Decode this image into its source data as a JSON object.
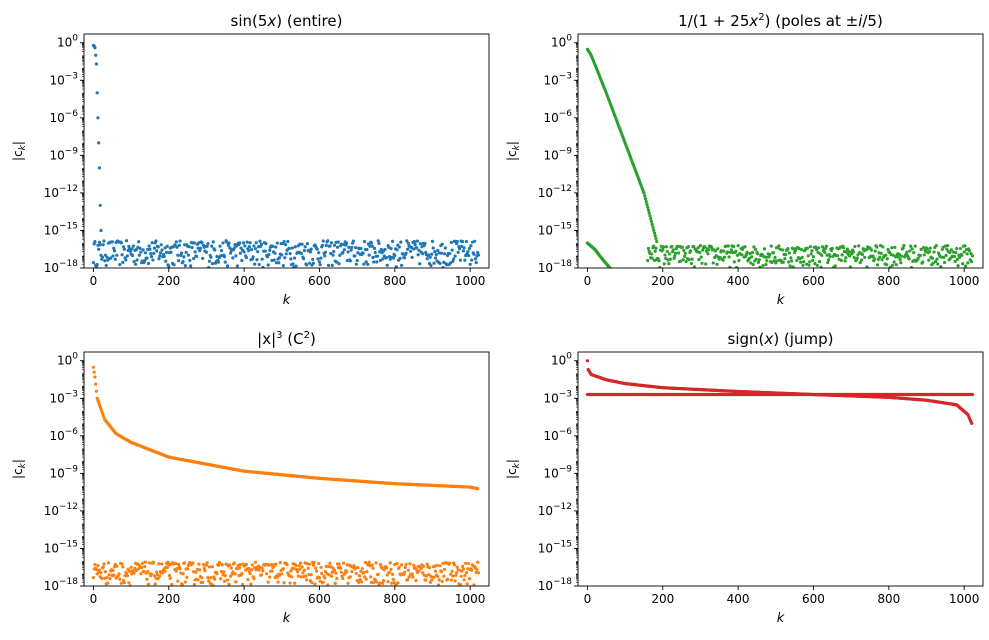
{
  "chart_data": [
    {
      "type": "scatter",
      "title_main": "sin(5",
      "title_var": "x",
      "title_tail": ") (entire)",
      "xlabel": "k",
      "ylabel": "|c",
      "ylabel_sub": "k",
      "ylabel_tail": "|",
      "y_scale": "log",
      "xlim": [
        -25,
        1050
      ],
      "ylim": [
        1e-18,
        5
      ],
      "xticks": [
        0,
        200,
        400,
        600,
        800,
        1000
      ],
      "yticks": [
        0,
        -3,
        -6,
        -9,
        -12,
        -15,
        -18
      ],
      "color": "#1f77b4",
      "series": [
        {
          "curve": [
            [
              0,
              0.6
            ],
            [
              2,
              0.55
            ],
            [
              4,
              0.4
            ],
            [
              6,
              0.1
            ],
            [
              8,
              0.02
            ],
            [
              10,
              0.0001
            ],
            [
              12,
              1e-06
            ],
            [
              14,
              1e-08
            ],
            [
              16,
              1e-10
            ],
            [
              18,
              1e-13
            ],
            [
              20,
              1e-15
            ]
          ]
        },
        {
          "noise": [
            1e-18,
            2e-16
          ],
          "k_range": [
            0,
            1023
          ]
        }
      ]
    },
    {
      "type": "scatter",
      "title_main": "1/(1 + 25",
      "title_var": "x",
      "title_sup": "2",
      "title_tail": ") (poles at ±",
      "title_var2": "i",
      "title_tail2": "/5)",
      "xlabel": "k",
      "ylabel": "|c",
      "ylabel_sub": "k",
      "ylabel_tail": "|",
      "y_scale": "log",
      "xlim": [
        -25,
        1050
      ],
      "ylim": [
        1e-18,
        5
      ],
      "xticks": [
        0,
        200,
        400,
        600,
        800,
        1000
      ],
      "yticks": [
        0,
        -3,
        -6,
        -9,
        -12,
        -15,
        -18
      ],
      "color": "#2ca02c",
      "series": [
        {
          "curve": [
            [
              0,
              0.3
            ],
            [
              10,
              0.1
            ],
            [
              50,
              0.0001
            ],
            [
              100,
              1e-08
            ],
            [
              150,
              1e-12
            ],
            [
              185,
              1e-16
            ]
          ]
        },
        {
          "curve": [
            [
              0,
              1e-16
            ],
            [
              20,
              3e-17
            ],
            [
              40,
              5e-18
            ],
            [
              60,
              1e-18
            ]
          ]
        },
        {
          "noise": [
            1e-18,
            8e-17
          ],
          "k_range": [
            160,
            1023
          ]
        }
      ]
    },
    {
      "type": "scatter",
      "title_main": "|x|",
      "title_sup": "3",
      "title_tail": " (C",
      "title_sup2": "2",
      "title_tail2": ")",
      "xlabel": "k",
      "ylabel": "|c",
      "ylabel_sub": "k",
      "ylabel_tail": "|",
      "y_scale": "log",
      "xlim": [
        -25,
        1050
      ],
      "ylim": [
        1e-18,
        5
      ],
      "xticks": [
        0,
        200,
        400,
        600,
        800,
        1000
      ],
      "yticks": [
        0,
        -3,
        -6,
        -9,
        -12,
        -15,
        -18
      ],
      "color": "#ff7f0e",
      "series": [
        {
          "curve": [
            [
              0,
              0.3
            ],
            [
              4,
              0.05
            ],
            [
              10,
              0.001
            ],
            [
              30,
              2e-05
            ],
            [
              60,
              1.5e-06
            ],
            [
              100,
              3e-07
            ],
            [
              200,
              2e-08
            ],
            [
              400,
              1.5e-09
            ],
            [
              600,
              4e-10
            ],
            [
              800,
              1.5e-10
            ],
            [
              1000,
              8e-11
            ],
            [
              1020,
              6e-11
            ]
          ]
        },
        {
          "noise": [
            1e-18,
            1e-16
          ],
          "k_range": [
            0,
            1023
          ]
        }
      ]
    },
    {
      "type": "scatter",
      "title_main": "sign(",
      "title_var": "x",
      "title_tail": ") (jump)",
      "xlabel": "k",
      "ylabel": "|c",
      "ylabel_sub": "k",
      "ylabel_tail": "|",
      "y_scale": "log",
      "xlim": [
        -25,
        1050
      ],
      "ylim": [
        1e-18,
        5
      ],
      "xticks": [
        0,
        200,
        400,
        600,
        800,
        1000
      ],
      "yticks": [
        0,
        -3,
        -6,
        -9,
        -12,
        -15,
        -18
      ],
      "color": "#d62728",
      "series": [
        {
          "curve": [
            [
              0,
              1.0
            ],
            [
              2,
              0.2
            ],
            [
              10,
              0.08
            ],
            [
              50,
              0.03
            ],
            [
              100,
              0.015
            ],
            [
              200,
              0.007
            ],
            [
              400,
              0.0035
            ],
            [
              600,
              0.002
            ],
            [
              800,
              0.0012
            ],
            [
              900,
              0.0007
            ],
            [
              980,
              0.0003
            ],
            [
              1010,
              5e-05
            ],
            [
              1020,
              1e-05
            ]
          ]
        },
        {
          "curve": [
            [
              0,
              0.002
            ],
            [
              1023,
              0.002
            ]
          ]
        }
      ]
    }
  ]
}
